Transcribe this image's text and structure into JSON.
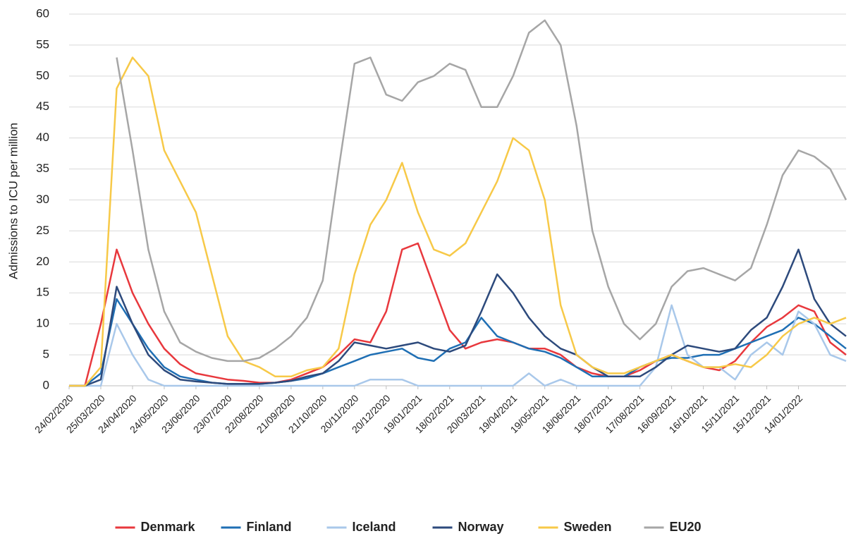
{
  "chart_data": {
    "type": "line",
    "y_label": "Admissions to ICU per million",
    "x": [
      "24/02/2020",
      "10/03/2020",
      "25/03/2020",
      "09/04/2020",
      "24/04/2020",
      "09/05/2020",
      "24/05/2020",
      "08/06/2020",
      "23/06/2020",
      "08/07/2020",
      "23/07/2020",
      "07/08/2020",
      "22/08/2020",
      "06/09/2020",
      "21/09/2020",
      "06/10/2020",
      "21/10/2020",
      "05/11/2020",
      "20/11/2020",
      "05/12/2020",
      "20/12/2020",
      "04/01/2021",
      "19/01/2021",
      "03/02/2021",
      "18/02/2021",
      "05/03/2021",
      "20/03/2021",
      "04/04/2021",
      "19/04/2021",
      "04/05/2021",
      "19/05/2021",
      "03/06/2021",
      "18/06/2021",
      "03/07/2021",
      "18/07/2021",
      "02/08/2021",
      "17/08/2021",
      "01/09/2021",
      "16/09/2021",
      "01/10/2021",
      "16/10/2021",
      "31/10/2021",
      "15/11/2021",
      "30/11/2021",
      "15/12/2021",
      "30/12/2021",
      "14/01/2022",
      "29/01/2022",
      "13/02/2022",
      "28/02/2022"
    ],
    "series": [
      {
        "name": "Denmark",
        "color": "#e8383d",
        "values": [
          0,
          0,
          10,
          22,
          15,
          10,
          6,
          3.5,
          2,
          1.5,
          1,
          0.8,
          0.5,
          0.5,
          1,
          2,
          3,
          5,
          7.5,
          7,
          12,
          22,
          23,
          16,
          9,
          6,
          7,
          7.5,
          7,
          6,
          6,
          5,
          3,
          2,
          1.5,
          1.5,
          2.5,
          4,
          5,
          4,
          3,
          2.5,
          4,
          7,
          9.5,
          11,
          13,
          12,
          7,
          5
        ]
      },
      {
        "name": "Finland",
        "color": "#1f6fb4",
        "values": [
          0,
          0,
          2,
          14,
          10,
          6,
          3,
          1.5,
          1,
          0.5,
          0.3,
          0.3,
          0.3,
          0.5,
          0.8,
          1.2,
          2,
          3,
          4,
          5,
          5.5,
          6,
          4.5,
          4,
          6,
          7,
          11,
          8,
          7,
          6,
          5.5,
          4.5,
          3,
          1.5,
          1.5,
          1.5,
          3,
          4,
          4.5,
          4.5,
          5,
          5,
          6,
          7,
          8,
          9,
          11,
          10,
          8,
          6
        ]
      },
      {
        "name": "Iceland",
        "color": "#a9c8ea",
        "values": [
          0,
          0,
          0,
          10,
          5,
          1,
          0,
          0,
          0,
          0,
          0,
          0,
          0,
          0,
          0,
          0,
          0,
          0,
          0,
          1,
          1,
          1,
          0,
          0,
          0,
          0,
          0,
          0,
          0,
          2,
          0,
          1,
          0,
          0,
          0,
          0,
          0,
          3,
          13,
          5,
          3,
          3,
          1,
          5,
          7,
          5,
          12,
          10,
          5,
          4
        ]
      },
      {
        "name": "Norway",
        "color": "#2d4a7c",
        "values": [
          0,
          0,
          1,
          16,
          10,
          5,
          2.5,
          1,
          0.7,
          0.5,
          0.3,
          0.3,
          0.3,
          0.5,
          0.8,
          1.5,
          2,
          4,
          7,
          6.5,
          6,
          6.5,
          7,
          6,
          5.5,
          6.5,
          12,
          18,
          15,
          11,
          8,
          6,
          5,
          3,
          1.5,
          1.5,
          1.5,
          3,
          5,
          6.5,
          6,
          5.5,
          6,
          9,
          11,
          16,
          22,
          14,
          10,
          8
        ]
      },
      {
        "name": "Sweden",
        "color": "#f7c948",
        "values": [
          0,
          0,
          3,
          48,
          53,
          50,
          38,
          33,
          28,
          18,
          8,
          4,
          3,
          1.5,
          1.5,
          2.5,
          3,
          6,
          18,
          26,
          30,
          36,
          28,
          22,
          21,
          23,
          28,
          33,
          40,
          38,
          30,
          13,
          5,
          3,
          2,
          2,
          3,
          4,
          5,
          4,
          3,
          3,
          3.5,
          3,
          5,
          8,
          10,
          11,
          10,
          11
        ]
      },
      {
        "name": "EU20",
        "color": "#a6a6a6",
        "values": [
          null,
          null,
          null,
          53,
          38,
          22,
          12,
          7,
          5.5,
          4.5,
          4,
          4,
          4.5,
          6,
          8,
          11,
          17,
          35,
          52,
          53,
          47,
          46,
          49,
          50,
          52,
          51,
          45,
          45,
          50,
          57,
          59,
          55,
          42,
          25,
          16,
          10,
          7.5,
          10,
          16,
          18.5,
          19,
          18,
          17,
          19,
          26,
          34,
          38,
          37,
          35,
          30
        ]
      }
    ],
    "xlim": [
      "24/02/2020",
      "28/02/2022"
    ],
    "xticks": [
      "24/02/2020",
      "25/03/2020",
      "24/04/2020",
      "24/05/2020",
      "23/06/2020",
      "23/07/2020",
      "22/08/2020",
      "21/09/2020",
      "21/10/2020",
      "20/11/2020",
      "20/12/2020",
      "19/01/2021",
      "18/02/2021",
      "20/03/2021",
      "19/04/2021",
      "19/05/2021",
      "18/06/2021",
      "18/07/2021",
      "17/08/2021",
      "16/09/2021",
      "16/10/2021",
      "15/11/2021",
      "15/12/2021",
      "14/01/2022"
    ],
    "ylim": [
      0,
      60
    ],
    "yticks": [
      0,
      5,
      10,
      15,
      20,
      25,
      30,
      35,
      40,
      45,
      50,
      55,
      60
    ],
    "grid": true
  }
}
